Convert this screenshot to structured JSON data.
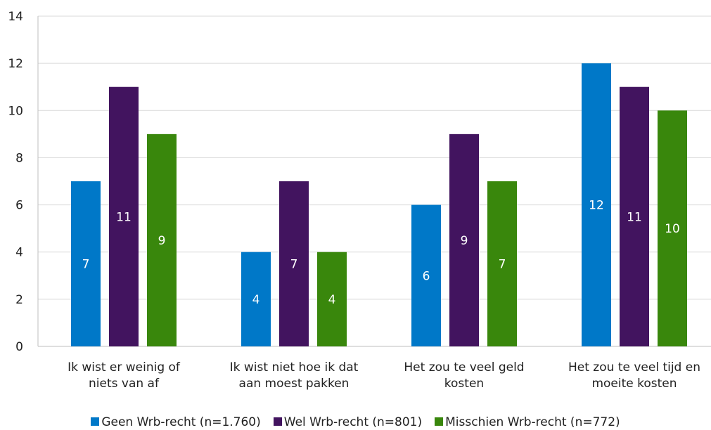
{
  "chart_data": {
    "type": "bar",
    "categories": [
      [
        "Ik wist er weinig of",
        "niets van af"
      ],
      [
        "Ik wist niet hoe ik dat",
        "aan moest pakken"
      ],
      [
        "Het zou te veel geld",
        "kosten"
      ],
      [
        "Het zou te veel tijd en",
        "moeite kosten"
      ]
    ],
    "series": [
      {
        "name": "Geen Wrb-recht (n=1.760)",
        "color": "#0078c8",
        "values": [
          7,
          4,
          6,
          12
        ]
      },
      {
        "name": "Wel Wrb-recht (n=801)",
        "color": "#42145f",
        "values": [
          11,
          7,
          9,
          11
        ]
      },
      {
        "name": "Misschien Wrb-recht (n=772)",
        "color": "#39870c",
        "values": [
          9,
          4,
          7,
          10
        ]
      }
    ],
    "ylim": [
      0,
      14
    ],
    "yticks": [
      0,
      2,
      4,
      6,
      8,
      10,
      12,
      14
    ],
    "data_labels": true,
    "grid": true,
    "legend": "bottom"
  }
}
